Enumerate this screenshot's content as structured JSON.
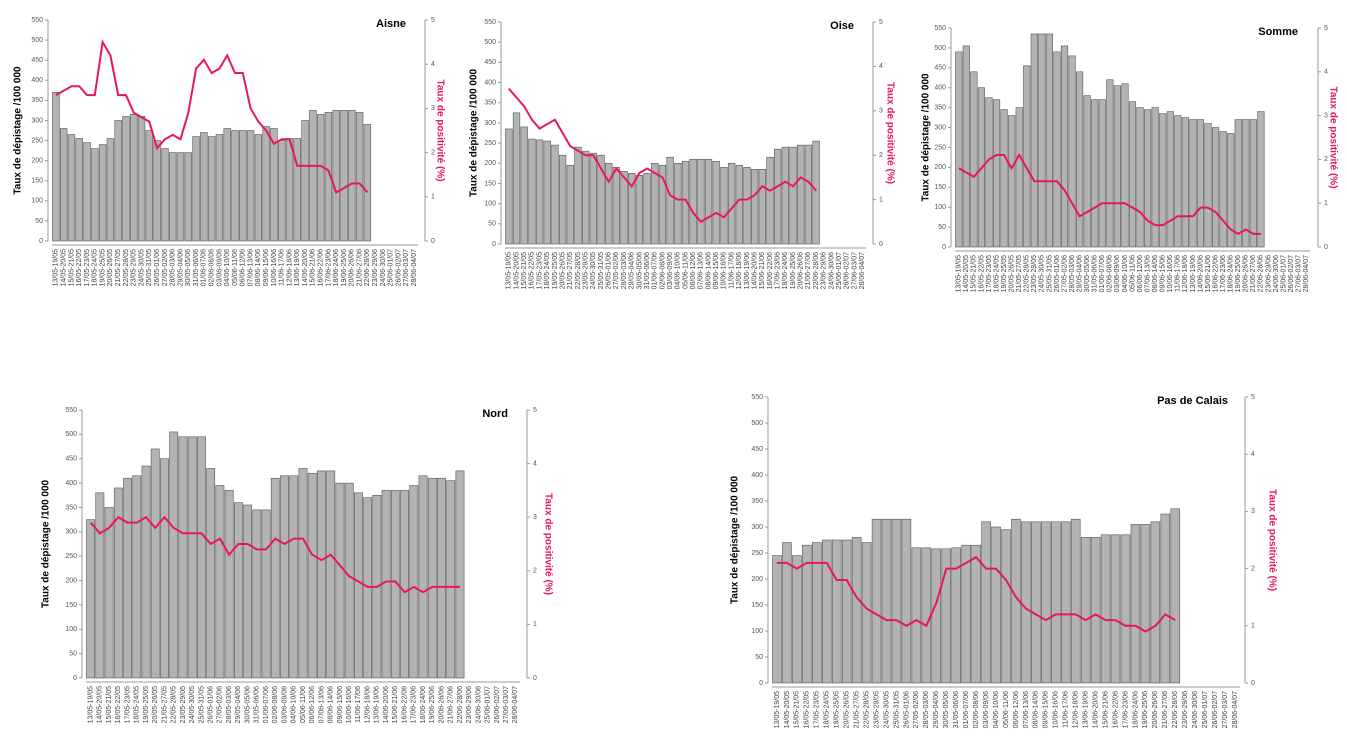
{
  "chart_data": [
    {
      "type": "bar",
      "title": "Aisne",
      "ylabel": "Taux de dépistage /100 000",
      "y2label": "Taux de positivité (%)",
      "categories": [
        "13/05-19/05",
        "14/05-20/05",
        "15/05-21/05",
        "16/05-22/05",
        "17/05-23/05",
        "18/05-24/05",
        "19/05-25/05",
        "20/05-26/05",
        "21/05-27/05",
        "22/05-28/05",
        "23/05-29/05",
        "24/05-30/05",
        "25/05-31/05",
        "26/05-01/06",
        "27/05-02/06",
        "28/05-03/06",
        "29/05-04/06",
        "30/05-05/06",
        "31/05-06/06",
        "01/06-07/06",
        "02/06-08/06",
        "03/06-09/06",
        "04/06-10/06",
        "05/06-11/06",
        "06/06-12/06",
        "07/06-13/06",
        "08/06-14/06",
        "09/06-15/06",
        "10/06-16/06",
        "11/06-17/06",
        "12/06-18/06",
        "13/06-19/06",
        "14/06-20/06",
        "15/06-21/06",
        "16/06-22/06",
        "17/06-23/06",
        "18/06-24/06",
        "19/06-25/06",
        "20/06-26/06",
        "21/06-27/06",
        "22/06-28/06",
        "23/06-29/06",
        "24/06-30/06",
        "25/06-01/07",
        "26/06-02/07",
        "27/06-03/07",
        "28/06-04/07"
      ],
      "series": [
        {
          "type": "bar",
          "color": "#b3b3b3",
          "values": [
            370,
            280,
            265,
            255,
            245,
            230,
            240,
            255,
            300,
            310,
            315,
            310,
            275,
            250,
            230,
            220,
            220,
            220,
            260,
            270,
            260,
            265,
            280,
            275,
            275,
            275,
            265,
            285,
            280,
            250,
            255,
            255,
            300,
            325,
            315,
            320,
            325,
            325,
            325,
            320,
            290,
            null,
            null,
            null,
            null,
            null,
            null
          ]
        },
        {
          "type": "line",
          "axis": "y2",
          "color": "#e8175d",
          "values": [
            3.3,
            3.4,
            3.5,
            3.5,
            3.3,
            3.3,
            4.5,
            4.2,
            3.3,
            3.3,
            2.9,
            2.8,
            2.7,
            2.1,
            2.3,
            2.4,
            2.3,
            2.9,
            3.9,
            4.1,
            3.8,
            3.9,
            4.2,
            3.8,
            3.8,
            3.0,
            2.7,
            2.5,
            2.2,
            2.3,
            2.3,
            1.7,
            1.7,
            1.7,
            1.7,
            1.6,
            1.1,
            1.2,
            1.3,
            1.3,
            1.1,
            null,
            null,
            null,
            null,
            null,
            null
          ]
        }
      ],
      "ylim": [
        0,
        550
      ],
      "yticks": [
        0,
        50,
        100,
        150,
        200,
        250,
        300,
        350,
        400,
        450,
        500,
        550
      ],
      "y2lim": [
        0,
        5
      ],
      "y2ticks": [
        0,
        1,
        2,
        3,
        4,
        5
      ]
    },
    {
      "type": "bar",
      "title": "Oise",
      "ylabel": "Taux de dépistage /100 000",
      "y2label": "Taux de positivité (%)",
      "categories": [
        "13/05-19/05",
        "14/05-20/05",
        "15/05-21/05",
        "16/05-22/05",
        "17/05-23/05",
        "18/05-24/05",
        "19/05-25/05",
        "20/05-26/05",
        "21/05-27/05",
        "22/05-28/05",
        "23/05-29/05",
        "24/05-30/05",
        "25/05-31/05",
        "26/05-01/06",
        "27/05-02/06",
        "28/05-03/06",
        "29/05-04/06",
        "30/05-05/06",
        "31/05-06/06",
        "01/06-07/06",
        "02/06-08/06",
        "03/06-09/06",
        "04/06-10/06",
        "05/06-11/06",
        "06/06-12/06",
        "07/06-13/06",
        "08/06-14/06",
        "09/06-15/06",
        "10/06-16/06",
        "11/06-17/06",
        "12/06-18/06",
        "13/06-19/06",
        "14/06-20/06",
        "15/06-21/06",
        "16/06-22/06",
        "17/06-23/06",
        "18/06-24/06",
        "19/06-25/06",
        "20/06-26/06",
        "21/06-27/06",
        "22/06-28/06",
        "23/06-29/06",
        "24/06-30/06",
        "25/06-01/07",
        "26/06-02/07",
        "27/06-03/07",
        "28/06-04/07"
      ],
      "series": [
        {
          "type": "bar",
          "color": "#b3b3b3",
          "values": [
            285,
            325,
            290,
            260,
            258,
            255,
            245,
            220,
            195,
            240,
            230,
            225,
            220,
            200,
            190,
            180,
            175,
            170,
            175,
            200,
            195,
            215,
            200,
            205,
            210,
            210,
            210,
            205,
            190,
            200,
            195,
            190,
            185,
            185,
            215,
            235,
            240,
            240,
            245,
            245,
            255,
            null,
            null,
            null,
            null,
            null,
            null
          ]
        },
        {
          "type": "line",
          "axis": "y2",
          "color": "#e8175d",
          "values": [
            3.5,
            3.3,
            3.1,
            2.8,
            2.6,
            2.7,
            2.8,
            2.5,
            2.2,
            2.1,
            2.0,
            2.0,
            1.7,
            1.4,
            1.7,
            1.5,
            1.3,
            1.6,
            1.7,
            1.6,
            1.5,
            1.1,
            1.0,
            1.0,
            0.7,
            0.5,
            0.6,
            0.7,
            0.6,
            0.8,
            1.0,
            1.0,
            1.1,
            1.3,
            1.2,
            1.3,
            1.4,
            1.3,
            1.5,
            1.4,
            1.2,
            null,
            null,
            null,
            null,
            null,
            null
          ]
        }
      ],
      "ylim": [
        0,
        550
      ],
      "yticks": [
        0,
        50,
        100,
        150,
        200,
        250,
        300,
        350,
        400,
        450,
        500,
        550
      ],
      "y2lim": [
        0,
        5
      ],
      "y2ticks": [
        0,
        1,
        2,
        3,
        4,
        5
      ]
    },
    {
      "type": "bar",
      "title": "Somme",
      "ylabel": "Taux de dépistage /100 000",
      "y2label": "Taux de positivité (%)",
      "categories": [
        "13/05-19/05",
        "14/05-20/05",
        "15/05-21/05",
        "16/05-22/05",
        "17/05-23/05",
        "18/05-24/05",
        "19/05-25/05",
        "20/05-26/05",
        "21/05-27/05",
        "22/05-28/05",
        "23/05-29/05",
        "24/05-30/05",
        "25/05-31/05",
        "26/05-01/06",
        "27/05-02/06",
        "28/05-03/06",
        "29/05-04/06",
        "30/05-05/06",
        "31/05-06/06",
        "01/06-07/06",
        "02/06-08/06",
        "03/06-09/06",
        "04/06-10/06",
        "05/06-11/06",
        "06/06-12/06",
        "07/06-13/06",
        "08/06-14/06",
        "09/06-15/06",
        "10/06-16/06",
        "11/06-17/06",
        "12/06-18/06",
        "13/06-19/06",
        "14/06-20/06",
        "15/06-21/06",
        "16/06-22/06",
        "17/06-23/06",
        "18/06-24/06",
        "19/06-25/06",
        "20/06-26/06",
        "21/06-27/06",
        "22/06-28/06",
        "23/06-29/06",
        "24/06-30/06",
        "25/06-01/07",
        "26/06-02/07",
        "27/06-03/07",
        "28/06-04/07"
      ],
      "series": [
        {
          "type": "bar",
          "color": "#b3b3b3",
          "values": [
            490,
            505,
            440,
            400,
            375,
            370,
            345,
            330,
            350,
            455,
            535,
            535,
            535,
            490,
            505,
            480,
            440,
            380,
            370,
            370,
            420,
            405,
            410,
            365,
            350,
            345,
            350,
            335,
            340,
            330,
            325,
            320,
            320,
            310,
            300,
            290,
            285,
            320,
            320,
            320,
            340,
            null,
            null,
            null,
            null,
            null,
            null
          ]
        },
        {
          "type": "line",
          "axis": "y2",
          "color": "#e8175d",
          "values": [
            1.8,
            1.7,
            1.6,
            1.8,
            2.0,
            2.1,
            2.1,
            1.8,
            2.1,
            1.8,
            1.5,
            1.5,
            1.5,
            1.5,
            1.3,
            1.0,
            0.7,
            0.8,
            0.9,
            1.0,
            1.0,
            1.0,
            1.0,
            0.9,
            0.8,
            0.6,
            0.5,
            0.5,
            0.6,
            0.7,
            0.7,
            0.7,
            0.9,
            0.9,
            0.8,
            0.6,
            0.4,
            0.3,
            0.4,
            0.3,
            0.3,
            null,
            null,
            null,
            null,
            null,
            null
          ]
        }
      ],
      "ylim": [
        0,
        550
      ],
      "yticks": [
        0,
        50,
        100,
        150,
        200,
        250,
        300,
        350,
        400,
        450,
        500,
        550
      ],
      "y2lim": [
        0,
        5
      ],
      "y2ticks": [
        0,
        1,
        2,
        3,
        4,
        5
      ]
    },
    {
      "type": "bar",
      "title": "Nord",
      "ylabel": "Taux de dépistage /100 000",
      "y2label": "Taux de positivité (%)",
      "categories": [
        "13/05-19/05",
        "14/05-20/05",
        "15/05-21/05",
        "16/05-22/05",
        "17/05-23/05",
        "18/05-24/05",
        "19/05-25/05",
        "20/05-26/05",
        "21/05-27/05",
        "22/05-28/05",
        "23/05-29/05",
        "24/05-30/05",
        "25/05-31/05",
        "26/05-01/06",
        "27/05-02/06",
        "28/05-03/06",
        "29/05-04/06",
        "30/05-05/06",
        "31/05-06/06",
        "01/06-07/06",
        "02/06-08/06",
        "03/06-09/06",
        "04/06-10/06",
        "05/06-11/06",
        "06/06-12/06",
        "07/06-13/06",
        "08/06-14/06",
        "09/06-15/06",
        "10/06-16/06",
        "11/06-17/06",
        "12/06-18/06",
        "13/06-19/06",
        "14/06-20/06",
        "15/06-21/06",
        "16/06-22/06",
        "17/06-23/06",
        "18/06-24/06",
        "19/06-25/06",
        "20/06-26/06",
        "21/06-27/06",
        "22/06-28/06",
        "23/06-29/06",
        "24/06-30/06",
        "25/06-01/07",
        "26/06-02/07",
        "27/06-03/07",
        "28/06-04/07"
      ],
      "series": [
        {
          "type": "bar",
          "color": "#b3b3b3",
          "values": [
            325,
            380,
            350,
            390,
            410,
            415,
            435,
            470,
            450,
            505,
            495,
            495,
            495,
            430,
            395,
            385,
            360,
            355,
            345,
            345,
            410,
            415,
            415,
            430,
            420,
            425,
            425,
            400,
            400,
            380,
            370,
            375,
            385,
            385,
            385,
            395,
            415,
            410,
            410,
            405,
            425,
            null,
            null,
            null,
            null,
            null,
            null
          ]
        },
        {
          "type": "line",
          "axis": "y2",
          "color": "#e8175d",
          "values": [
            2.9,
            2.7,
            2.8,
            3.0,
            2.9,
            2.9,
            3.0,
            2.8,
            3.0,
            2.8,
            2.7,
            2.7,
            2.7,
            2.5,
            2.6,
            2.3,
            2.5,
            2.5,
            2.4,
            2.4,
            2.6,
            2.5,
            2.6,
            2.6,
            2.3,
            2.2,
            2.3,
            2.1,
            1.9,
            1.8,
            1.7,
            1.7,
            1.8,
            1.8,
            1.6,
            1.7,
            1.6,
            1.7,
            1.7,
            1.7,
            1.7,
            null,
            null,
            null,
            null,
            null,
            null
          ]
        }
      ],
      "ylim": [
        0,
        550
      ],
      "yticks": [
        0,
        50,
        100,
        150,
        200,
        250,
        300,
        350,
        400,
        450,
        500,
        550
      ],
      "y2lim": [
        0,
        5
      ],
      "y2ticks": [
        0,
        1,
        2,
        3,
        4,
        5
      ]
    },
    {
      "type": "bar",
      "title": "Pas de Calais",
      "ylabel": "Taux de dépistage /100 000",
      "y2label": "Taux de positivité (%)",
      "categories": [
        "13/05-19/05",
        "14/05-20/05",
        "15/05-21/05",
        "16/05-22/05",
        "17/05-23/05",
        "18/05-24/05",
        "19/05-25/05",
        "20/05-26/05",
        "21/05-27/05",
        "22/05-28/05",
        "23/05-29/05",
        "24/05-30/05",
        "25/05-31/05",
        "26/05-01/06",
        "27/05-02/06",
        "28/05-03/06",
        "29/05-04/06",
        "30/05-05/06",
        "31/05-06/06",
        "01/06-07/06",
        "02/06-08/06",
        "03/06-09/06",
        "04/06-10/06",
        "05/06-11/06",
        "06/06-12/06",
        "07/06-13/06",
        "08/06-14/06",
        "09/06-15/06",
        "10/06-16/06",
        "11/06-17/06",
        "12/06-18/06",
        "13/06-19/06",
        "14/06-20/06",
        "15/06-21/06",
        "16/06-22/06",
        "17/06-23/06",
        "18/06-24/06",
        "19/06-25/06",
        "20/06-26/06",
        "21/06-27/06",
        "22/06-28/06",
        "23/06-29/06",
        "24/06-30/06",
        "25/06-01/07",
        "26/06-02/07",
        "27/06-03/07",
        "28/06-04/07"
      ],
      "series": [
        {
          "type": "bar",
          "color": "#b3b3b3",
          "values": [
            245,
            270,
            245,
            265,
            270,
            275,
            275,
            275,
            280,
            270,
            315,
            315,
            315,
            315,
            260,
            260,
            258,
            258,
            260,
            265,
            265,
            310,
            300,
            295,
            315,
            310,
            310,
            310,
            310,
            310,
            315,
            280,
            280,
            285,
            285,
            285,
            305,
            305,
            310,
            325,
            335,
            null,
            null,
            null,
            null,
            null,
            null
          ]
        },
        {
          "type": "line",
          "axis": "y2",
          "color": "#e8175d",
          "values": [
            2.1,
            2.1,
            2.0,
            2.1,
            2.1,
            2.1,
            1.8,
            1.8,
            1.5,
            1.3,
            1.2,
            1.1,
            1.1,
            1.0,
            1.1,
            1.0,
            1.4,
            2.0,
            2.0,
            2.1,
            2.2,
            2.0,
            2.0,
            1.8,
            1.5,
            1.3,
            1.2,
            1.1,
            1.2,
            1.2,
            1.2,
            1.1,
            1.2,
            1.1,
            1.1,
            1.0,
            1.0,
            0.9,
            1.0,
            1.2,
            1.1,
            null,
            null,
            null,
            null,
            null,
            null
          ]
        }
      ],
      "ylim": [
        0,
        550
      ],
      "yticks": [
        0,
        50,
        100,
        150,
        200,
        250,
        300,
        350,
        400,
        450,
        500,
        550
      ],
      "y2lim": [
        0,
        5
      ],
      "y2ticks": [
        0,
        1,
        2,
        3,
        4,
        5
      ]
    }
  ]
}
